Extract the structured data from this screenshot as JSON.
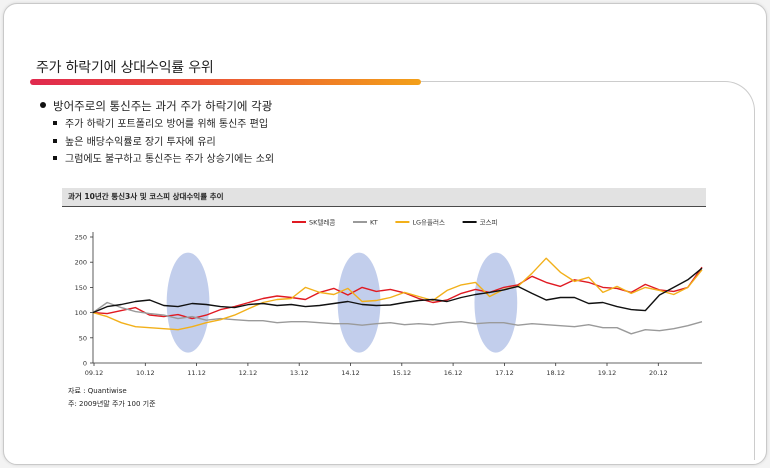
{
  "slide": {
    "title": "주가 하락기에  상대수익률 우위",
    "bullet_main": "방어주로의 통신주는 과거 주가 하락기에 각광",
    "sub_bullets": [
      "주가 하락기 포트폴리오 방어를 위해 통신주 편입",
      "높은 배당수익률로 장기 투자에 유리",
      "그럼에도 불구하고 통신주는 주가 상승기에는 소외"
    ],
    "source": "자료 : Quantiwise",
    "footnote": "주: 2009년말 주가 100 기준"
  },
  "colors": {
    "accent_start": "#e0294e",
    "accent_end": "#f3a019"
  },
  "chart_data": {
    "type": "line",
    "title": "과거 10년간 통신3사 및 코스피 상대수익률 추이",
    "xlabel": "",
    "ylabel": "",
    "x_ticks": [
      "09.12",
      "10.12",
      "11.12",
      "12.12",
      "13.12",
      "14.12",
      "15.12",
      "16.12",
      "17.12",
      "18.12",
      "19.12",
      "20.12"
    ],
    "y_ticks": [
      0,
      50,
      100,
      150,
      200,
      250
    ],
    "ylim": [
      0,
      250
    ],
    "legend_position": "top",
    "grid": false,
    "series": [
      {
        "name": "SK텔레콤",
        "color": "#e01a22",
        "values": [
          100,
          98,
          104,
          110,
          95,
          92,
          96,
          88,
          95,
          106,
          112,
          120,
          128,
          133,
          130,
          126,
          140,
          148,
          135,
          150,
          142,
          146,
          139,
          128,
          120,
          125,
          138,
          146,
          140,
          150,
          155,
          172,
          160,
          152,
          165,
          160,
          150,
          148,
          140,
          156,
          145,
          142,
          150,
          190
        ]
      },
      {
        "name": "KT",
        "color": "#9a9a9a",
        "values": [
          100,
          120,
          110,
          102,
          98,
          95,
          88,
          92,
          85,
          88,
          86,
          84,
          84,
          80,
          82,
          82,
          80,
          78,
          78,
          75,
          78,
          80,
          76,
          78,
          76,
          80,
          82,
          78,
          80,
          80,
          75,
          78,
          76,
          74,
          72,
          76,
          70,
          70,
          58,
          66,
          64,
          68,
          74,
          82
        ]
      },
      {
        "name": "LG유플러스",
        "color": "#f2b01a",
        "values": [
          100,
          92,
          80,
          72,
          70,
          68,
          66,
          72,
          80,
          86,
          95,
          108,
          120,
          126,
          128,
          150,
          140,
          136,
          148,
          122,
          124,
          130,
          140,
          132,
          124,
          144,
          155,
          160,
          132,
          146,
          152,
          178,
          208,
          180,
          162,
          170,
          140,
          152,
          138,
          150,
          144,
          136,
          150,
          185
        ]
      },
      {
        "name": "코스피",
        "color": "#111111",
        "values": [
          100,
          112,
          116,
          122,
          125,
          114,
          112,
          118,
          116,
          112,
          110,
          116,
          118,
          114,
          116,
          112,
          114,
          118,
          122,
          116,
          114,
          115,
          120,
          124,
          126,
          122,
          130,
          136,
          140,
          145,
          152,
          138,
          125,
          130,
          130,
          118,
          120,
          112,
          106,
          104,
          135,
          150,
          165,
          188
        ]
      }
    ],
    "highlights": [
      {
        "from": "11.05",
        "to": "12.03"
      },
      {
        "from": "14.09",
        "to": "15.07"
      },
      {
        "from": "17.05",
        "to": "18.03"
      }
    ]
  }
}
